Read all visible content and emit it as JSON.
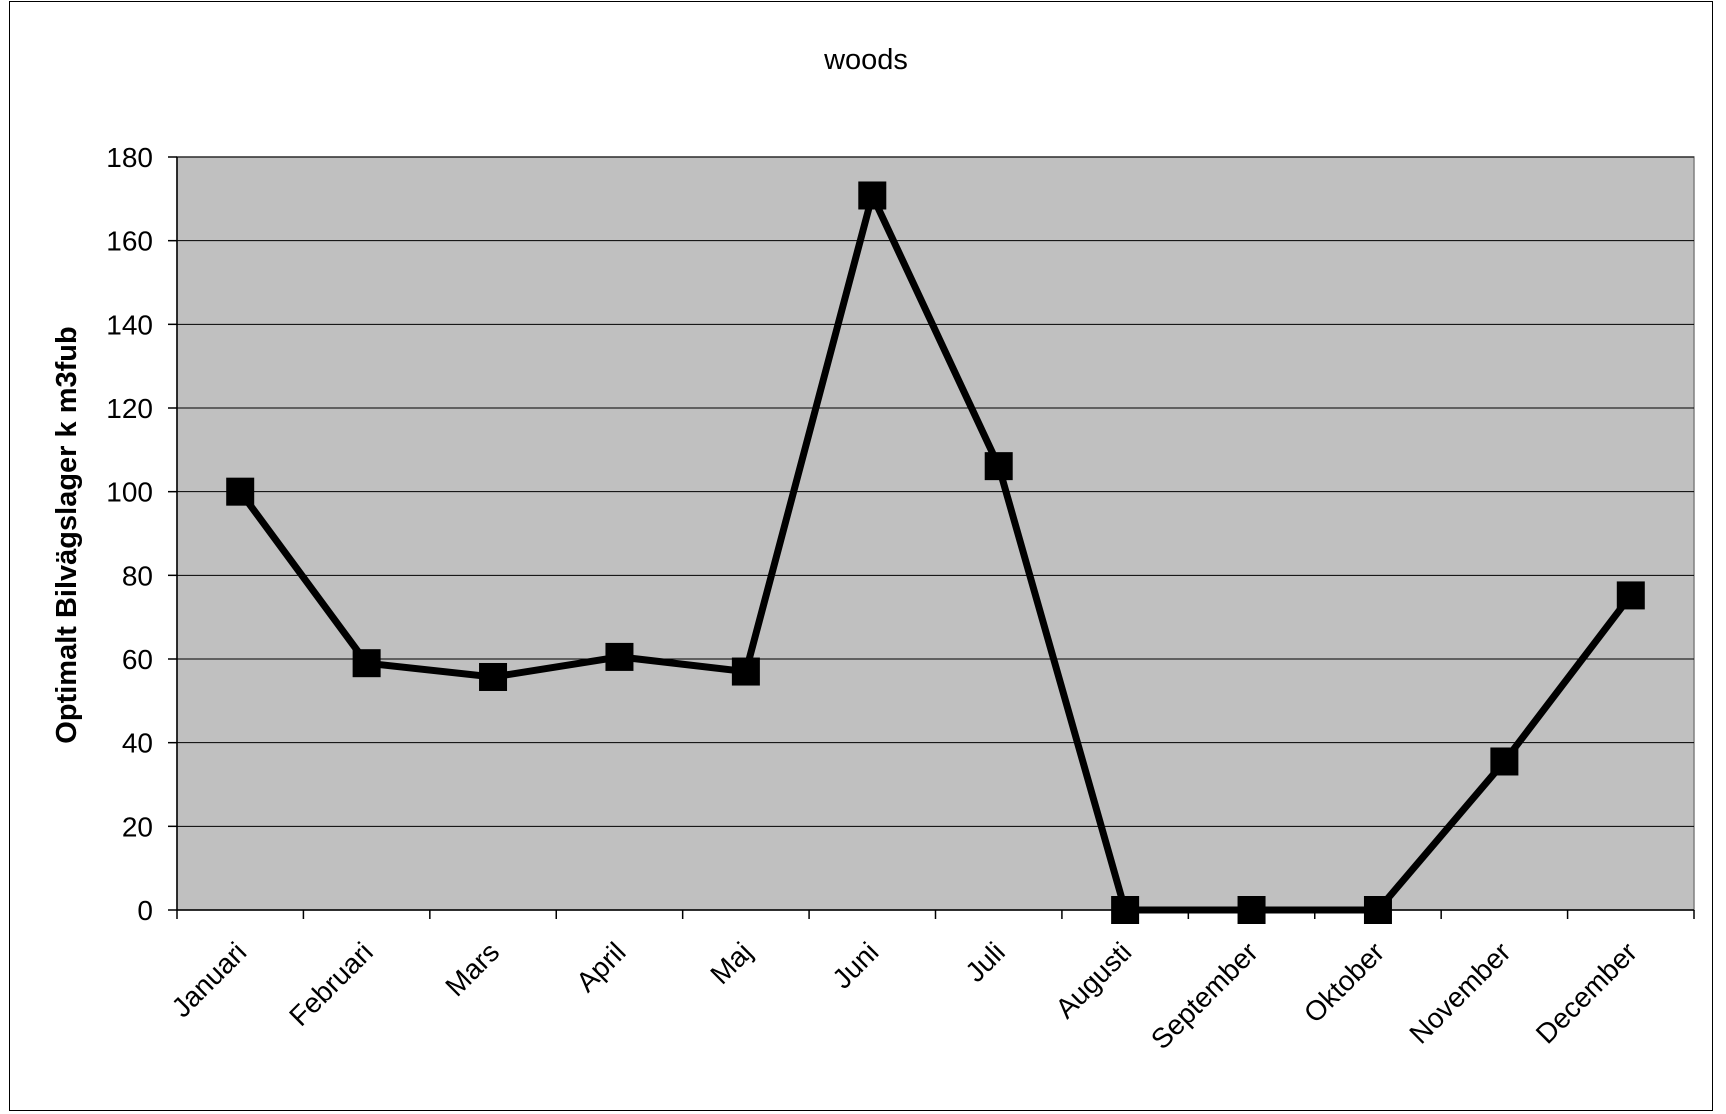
{
  "chart_data": {
    "type": "line",
    "title": "woods",
    "xlabel": "",
    "ylabel": "Optimalt Bilvägslager k m3fub",
    "categories": [
      "Januari",
      "Februari",
      "Mars",
      "April",
      "Maj",
      "Juni",
      "Juli",
      "Augusti",
      "September",
      "Oktober",
      "November",
      "December"
    ],
    "series": [
      {
        "values": [
          100,
          59,
          55.7,
          60.5,
          57,
          170.8,
          106.1,
          0,
          0,
          0,
          35.5,
          75.2
        ]
      }
    ],
    "ylim": [
      0,
      180
    ],
    "yticks": [
      "0",
      "20",
      "40",
      "60",
      "80",
      "100",
      "120",
      "140",
      "160",
      "180"
    ],
    "grid": "horizontal",
    "legend": "none",
    "colors": {
      "plot_background": "#c0c0c0",
      "line": "#000000",
      "marker": "#000000",
      "gridline": "#000000"
    },
    "marker": "square"
  }
}
